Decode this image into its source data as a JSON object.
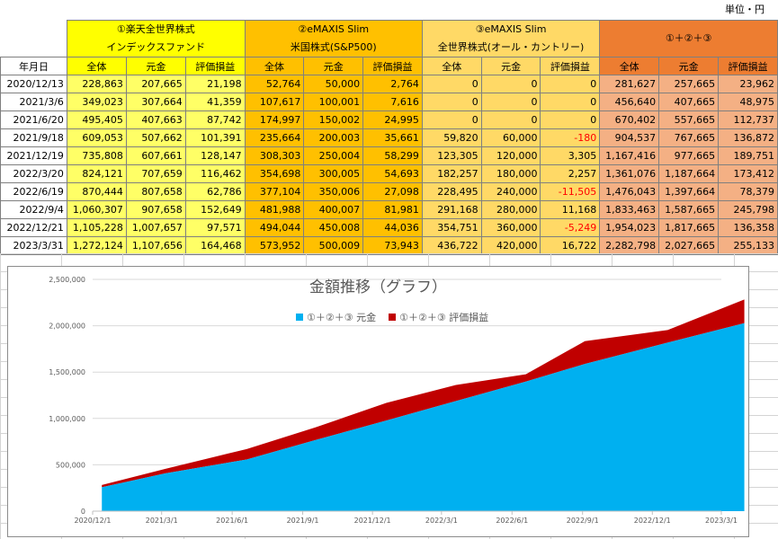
{
  "unit_label": "単位・円",
  "groups": [
    {
      "line1": "①楽天全世界株式",
      "line2": "インデックスファンド"
    },
    {
      "line1": "②eMAXIS Slim",
      "line2": "米国株式(S&P500)"
    },
    {
      "line1": "③eMAXIS Slim",
      "line2": "全世界株式(オール・カントリー)"
    },
    {
      "line1": "①＋②＋③",
      "line2": ""
    }
  ],
  "date_header": "年月日",
  "col_headers": [
    "全体",
    "元金",
    "評価損益"
  ],
  "rows": [
    {
      "date": "2020/12/13",
      "v": [
        "228,863",
        "207,665",
        "21,198",
        "52,764",
        "50,000",
        "2,764",
        "0",
        "0",
        "0",
        "281,627",
        "257,665",
        "23,962"
      ]
    },
    {
      "date": "2021/3/6",
      "v": [
        "349,023",
        "307,664",
        "41,359",
        "107,617",
        "100,001",
        "7,616",
        "0",
        "0",
        "0",
        "456,640",
        "407,665",
        "48,975"
      ]
    },
    {
      "date": "2021/6/20",
      "v": [
        "495,405",
        "407,663",
        "87,742",
        "174,997",
        "150,002",
        "24,995",
        "0",
        "0",
        "0",
        "670,402",
        "557,665",
        "112,737"
      ]
    },
    {
      "date": "2021/9/18",
      "v": [
        "609,053",
        "507,662",
        "101,391",
        "235,664",
        "200,003",
        "35,661",
        "59,820",
        "60,000",
        "-180",
        "904,537",
        "767,665",
        "136,872"
      ]
    },
    {
      "date": "2021/12/19",
      "v": [
        "735,808",
        "607,661",
        "128,147",
        "308,303",
        "250,004",
        "58,299",
        "123,305",
        "120,000",
        "3,305",
        "1,167,416",
        "977,665",
        "189,751"
      ]
    },
    {
      "date": "2022/3/20",
      "v": [
        "824,121",
        "707,659",
        "116,462",
        "354,698",
        "300,005",
        "54,693",
        "182,257",
        "180,000",
        "2,257",
        "1,361,076",
        "1,187,664",
        "173,412"
      ]
    },
    {
      "date": "2022/6/19",
      "v": [
        "870,444",
        "807,658",
        "62,786",
        "377,104",
        "350,006",
        "27,098",
        "228,495",
        "240,000",
        "-11,505",
        "1,476,043",
        "1,397,664",
        "78,379"
      ]
    },
    {
      "date": "2022/9/4",
      "v": [
        "1,060,307",
        "907,658",
        "152,649",
        "481,988",
        "400,007",
        "81,981",
        "291,168",
        "280,000",
        "11,168",
        "1,833,463",
        "1,587,665",
        "245,798"
      ]
    },
    {
      "date": "2022/12/21",
      "v": [
        "1,105,228",
        "1,007,657",
        "97,571",
        "494,044",
        "450,008",
        "44,036",
        "354,751",
        "360,000",
        "-5,249",
        "1,954,023",
        "1,817,665",
        "136,358"
      ]
    },
    {
      "date": "2023/3/31",
      "v": [
        "1,272,124",
        "1,107,656",
        "164,468",
        "573,952",
        "500,009",
        "73,943",
        "436,722",
        "420,000",
        "16,722",
        "2,282,798",
        "2,027,665",
        "255,133"
      ]
    }
  ],
  "colors": {
    "principal": "#00b0f0",
    "gain": "#c00000"
  },
  "chart_data": {
    "type": "area",
    "stacked": true,
    "title": "金額推移（グラフ）",
    "x": [
      "2020/12/13",
      "2021/3/6",
      "2021/6/20",
      "2021/9/18",
      "2021/12/19",
      "2022/3/20",
      "2022/6/19",
      "2022/9/4",
      "2022/12/21",
      "2023/3/31"
    ],
    "x_tick_labels": [
      "2020/12/1",
      "2021/3/1",
      "2021/6/1",
      "2021/9/1",
      "2021/12/1",
      "2022/3/1",
      "2022/6/1",
      "2022/9/1",
      "2022/12/1",
      "2023/3/1"
    ],
    "y_tick_labels": [
      "0",
      "500,000",
      "1,000,000",
      "1,500,000",
      "2,000,000",
      "2,500,000"
    ],
    "ylim": [
      0,
      2500000
    ],
    "legend_position": "top",
    "series": [
      {
        "name": "①＋②＋③ 元金",
        "values": [
          257665,
          407665,
          557665,
          767665,
          977665,
          1187664,
          1397664,
          1587665,
          1817665,
          2027665
        ]
      },
      {
        "name": "①＋②＋③ 評価損益",
        "values": [
          23962,
          48975,
          112737,
          136872,
          189751,
          173412,
          78379,
          245798,
          136358,
          255133
        ]
      }
    ]
  }
}
